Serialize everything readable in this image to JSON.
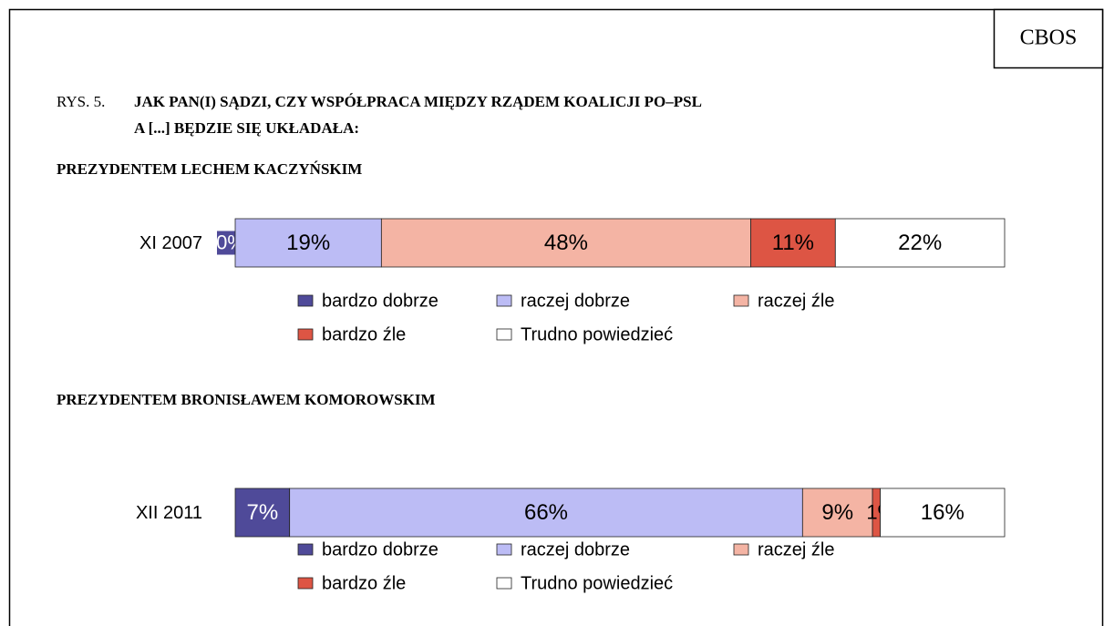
{
  "header": {
    "source": "CBOS",
    "figure_label": "RYS. 5.",
    "title_lines": [
      "JAK PAN(I) SĄDZI, CZY WSPÓŁPRACA MIĘDZY RZĄDEM KOALICJI PO–PSL",
      "A [...] BĘDZIE SIĘ UKŁADAŁA:"
    ]
  },
  "chart_data": [
    {
      "type": "bar",
      "title": "PREZYDENTEM LECHEM KACZYŃSKIM",
      "categories": [
        "XI 2007"
      ],
      "series": [
        {
          "name": "bardzo dobrze",
          "color": "#4f4a99",
          "values": [
            0
          ],
          "value_labels": [
            "0%"
          ]
        },
        {
          "name": "raczej dobrze",
          "color": "#bcbcf5",
          "values": [
            19
          ],
          "value_labels": [
            "19%"
          ]
        },
        {
          "name": "raczej źle",
          "color": "#f4b4a4",
          "values": [
            48
          ],
          "value_labels": [
            "48%"
          ]
        },
        {
          "name": "bardzo źle",
          "color": "#dd5544",
          "values": [
            11
          ],
          "value_labels": [
            "11%"
          ]
        },
        {
          "name": "Trudno powiedzieć",
          "color": "#ffffff",
          "values": [
            22
          ],
          "value_labels": [
            "22%"
          ]
        }
      ]
    },
    {
      "type": "bar",
      "title": "PREZYDENTEM BRONISŁAWEM KOMOROWSKIM",
      "categories": [
        "XII 2011"
      ],
      "series": [
        {
          "name": "bardzo dobrze",
          "color": "#4f4a99",
          "values": [
            7
          ],
          "value_labels": [
            "7%"
          ]
        },
        {
          "name": "raczej dobrze",
          "color": "#bcbcf5",
          "values": [
            66
          ],
          "value_labels": [
            "66%"
          ]
        },
        {
          "name": "raczej źle",
          "color": "#f4b4a4",
          "values": [
            9
          ],
          "value_labels": [
            "9%"
          ]
        },
        {
          "name": "bardzo źle",
          "color": "#dd5544",
          "values": [
            1
          ],
          "value_labels": [
            "1%"
          ]
        },
        {
          "name": "Trudno powiedzieć",
          "color": "#ffffff",
          "values": [
            16
          ],
          "value_labels": [
            "16%"
          ]
        }
      ]
    }
  ]
}
